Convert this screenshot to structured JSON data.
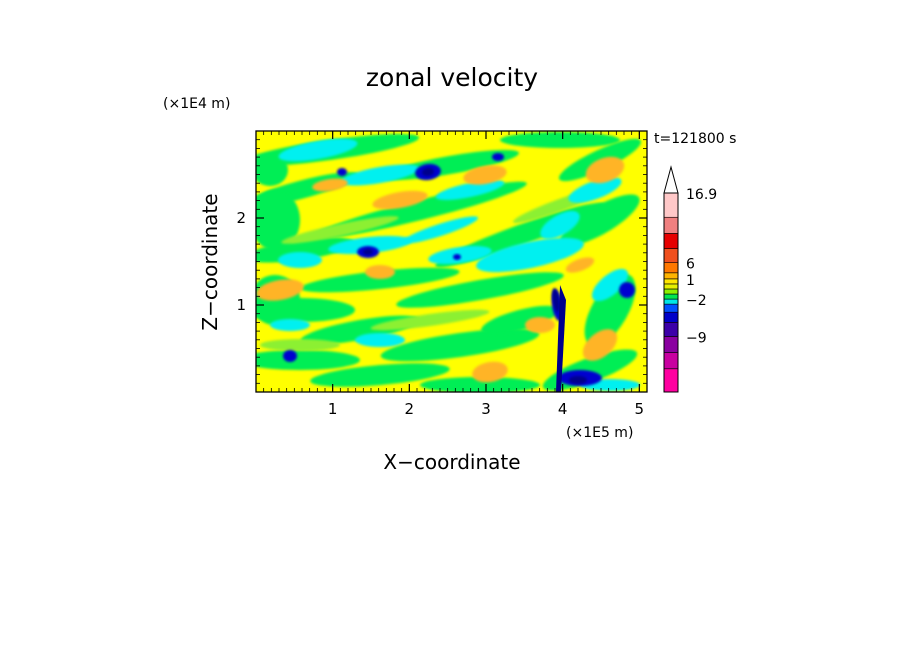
{
  "chart_data": {
    "type": "heatmap",
    "title": "zonal velocity",
    "xlabel": "X−coordinate",
    "ylabel": "Z−coordinate",
    "x_unit": "(×1E5 m)",
    "y_unit": "(×1E4 m)",
    "time_label": "t=121800 s",
    "xlim": [
      0,
      5.1
    ],
    "ylim": [
      0,
      3.0
    ],
    "x_ticks": [
      "1",
      "2",
      "3",
      "4",
      "5"
    ],
    "y_ticks": [
      "1",
      "2"
    ],
    "colorbar": {
      "labels": [
        "16.9",
        "6",
        "1",
        "−2",
        "−9"
      ],
      "bands": [
        {
          "color": "#ff00a0"
        },
        {
          "color": "#c800a0"
        },
        {
          "color": "#8a00a0"
        },
        {
          "color": "#3c00a8"
        },
        {
          "color": "#0000c8"
        },
        {
          "color": "#0050ff"
        },
        {
          "color": "#00e6e6"
        },
        {
          "color": "#00e650"
        },
        {
          "color": "#8cf000"
        },
        {
          "color": "#e6f000"
        },
        {
          "color": "#ffe600"
        },
        {
          "color": "#ffb400"
        },
        {
          "color": "#ff7800"
        },
        {
          "color": "#f0501e"
        },
        {
          "color": "#e60000"
        },
        {
          "color": "#f08080"
        },
        {
          "color": "#ffc8c8"
        }
      ]
    },
    "field_colors": {
      "yellow": "#ffff00",
      "green": "#00ee55",
      "cyan": "#00f0f0",
      "orange": "#ffb428",
      "blue": "#0000d0",
      "dark_blue": "#00008c",
      "light_green": "#8cf032"
    }
  }
}
